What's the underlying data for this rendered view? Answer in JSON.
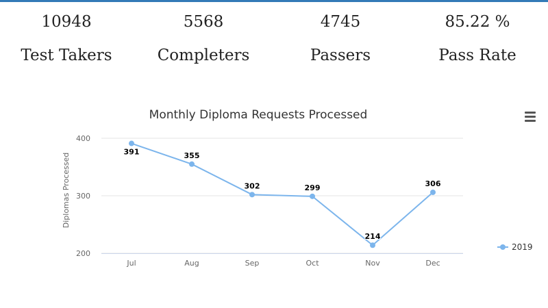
{
  "stats": [
    {
      "value": "10948",
      "label": "Test Takers"
    },
    {
      "value": "5568",
      "label": "Completers"
    },
    {
      "value": "4745",
      "label": "Passers"
    },
    {
      "value": "85.22 %",
      "label": "Pass Rate"
    }
  ],
  "colors": {
    "accent_bar": "#337ab7",
    "series": "#7cb5ec"
  },
  "menu_icon": "hamburger-menu-icon",
  "chart_data": {
    "type": "line",
    "title": "Monthly Diploma Requests Processed",
    "xlabel": "",
    "ylabel": "Diplomas Processed",
    "categories": [
      "Jul",
      "Aug",
      "Sep",
      "Oct",
      "Nov",
      "Dec"
    ],
    "series": [
      {
        "name": "2019",
        "values": [
          391,
          355,
          302,
          299,
          214,
          306
        ]
      }
    ],
    "ylim": [
      200,
      400
    ],
    "yticks": [
      200,
      300,
      400
    ],
    "grid": true,
    "legend": "right"
  }
}
